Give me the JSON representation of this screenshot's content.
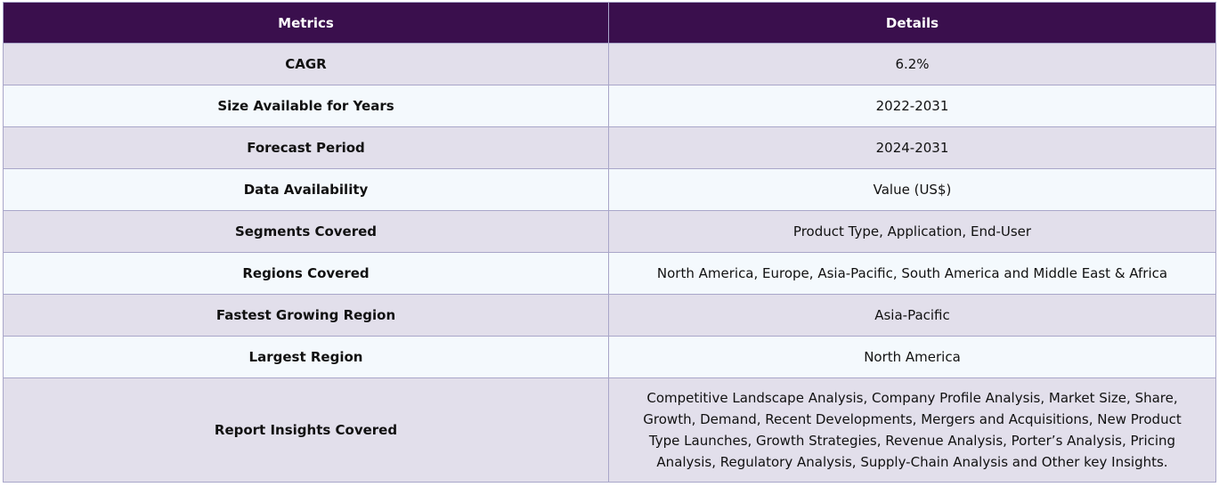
{
  "table": {
    "headers": {
      "metric": "Metrics",
      "detail": "Details"
    },
    "rows": [
      {
        "metric": "CAGR",
        "detail": "6.2%"
      },
      {
        "metric": "Size Available for Years",
        "detail": "2022-2031"
      },
      {
        "metric": "Forecast Period",
        "detail": "2024-2031"
      },
      {
        "metric": "Data Availability",
        "detail": "Value (US$)"
      },
      {
        "metric": "Segments Covered",
        "detail": "Product Type, Application, End-User"
      },
      {
        "metric": "Regions Covered",
        "detail": "North America, Europe, Asia-Pacific, South America and Middle East & Africa"
      },
      {
        "metric": "Fastest Growing Region",
        "detail": "Asia-Pacific"
      },
      {
        "metric": "Largest Region",
        "detail": "North America"
      },
      {
        "metric": "Report Insights Covered",
        "detail": "Competitive Landscape Analysis, Company Profile Analysis, Market Size, Share, Growth, Demand, Recent Developments, Mergers and Acquisitions, New Product Type Launches, Growth Strategies, Revenue Analysis, Porter’s Analysis, Pricing Analysis, Regulatory Analysis, Supply-Chain Analysis and Other key Insights."
      }
    ]
  }
}
